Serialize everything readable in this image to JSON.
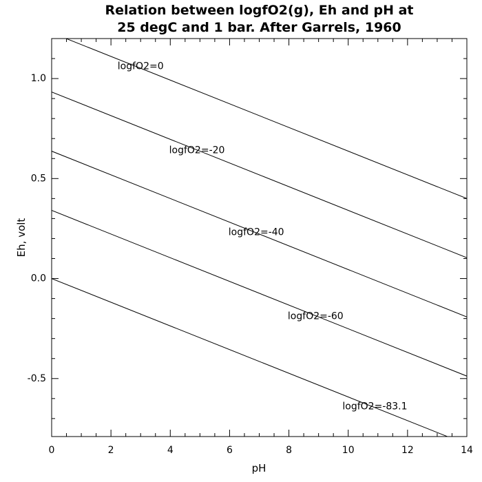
{
  "chart_data": {
    "type": "line",
    "title_lines": [
      "Relation between logfO2(g), Eh and pH at",
      "25 degC and 1 bar. After Garrels, 1960"
    ],
    "xlabel": "pH",
    "ylabel": "Eh, volt",
    "xlim": [
      0,
      14
    ],
    "ylim": [
      -0.79,
      1.2
    ],
    "x_ticks": [
      0,
      2,
      4,
      6,
      8,
      10,
      12,
      14
    ],
    "x_tick_labels": [
      "0",
      "2",
      "4",
      "6",
      "8",
      "10",
      "12",
      "14"
    ],
    "y_ticks": [
      -0.5,
      0.0,
      0.5,
      1.0
    ],
    "y_tick_labels": [
      "-0.5",
      "0.0",
      "0.5",
      "1.0"
    ],
    "grid": false,
    "legend": "none",
    "line_color": "#000000",
    "series": [
      {
        "name": "logfO2=0",
        "intercept": 1.229,
        "slope": -0.0592,
        "label_at": [
          3.0,
          1.06
        ]
      },
      {
        "name": "logfO2=-20",
        "intercept": 0.933,
        "slope": -0.0592,
        "label_at": [
          4.9,
          0.64
        ]
      },
      {
        "name": "logfO2=-40",
        "intercept": 0.637,
        "slope": -0.0592,
        "label_at": [
          6.9,
          0.23
        ]
      },
      {
        "name": "logfO2=-60",
        "intercept": 0.341,
        "slope": -0.0592,
        "label_at": [
          8.9,
          -0.19
        ]
      },
      {
        "name": "logfO2=-83.1",
        "intercept": 0.0,
        "slope": -0.0592,
        "label_at": [
          10.9,
          -0.64
        ]
      }
    ]
  }
}
